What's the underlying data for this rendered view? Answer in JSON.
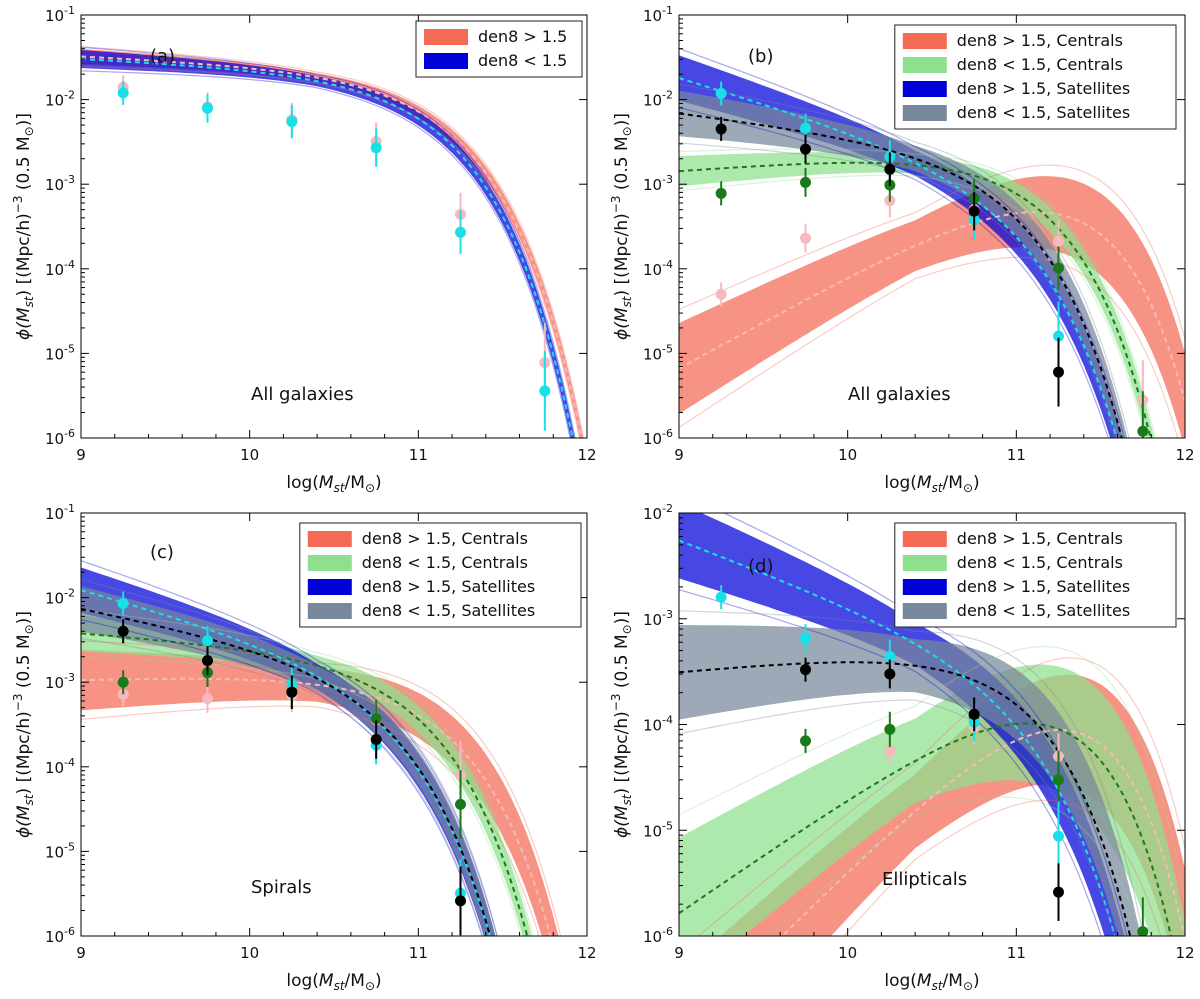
{
  "colors": {
    "den8_gt_centrals": "#f46a55",
    "den8_lt_centrals": "#8ee08e",
    "den8_gt_satellites": "#0000d8",
    "den8_lt_satellites": "#77889a",
    "point_gt_centrals": "#f7b9bd",
    "point_lt_centrals": "#1a7a1a",
    "point_gt_satellites": "#18e0e8",
    "point_lt_satellites": "#000000"
  },
  "chart_data": [
    {
      "id": "a",
      "type": "line",
      "panel_label": "(a)",
      "annotation": "All galaxies",
      "xlabel": "log(M_st/M_⊙)",
      "ylabel": "ϕ(M_st) [(Mpc/h)^-3 (0.5 M_⊙)]",
      "xlim": [
        9,
        12
      ],
      "ylim": [
        1e-06,
        0.1
      ],
      "x_ticks": [
        "9",
        "10",
        "11",
        "12"
      ],
      "y_ticks": [
        "10-6",
        "10-5",
        "10-4",
        "10-3",
        "10-2",
        "10-1"
      ],
      "legend": [
        "den8 > 1.5",
        "den8 < 1.5"
      ],
      "series": [
        {
          "name": "den8 > 1.5",
          "color_key": "den8_gt_centrals",
          "point_color_key": "point_gt_centrals",
          "phi_star": 0.009,
          "alpha": -1.1,
          "log_mstar": 10.98,
          "spread": 0.05,
          "points": [
            [
              9.25,
              0.014
            ],
            [
              9.75,
              0.0082
            ],
            [
              10.25,
              0.0058
            ],
            [
              10.75,
              0.0032
            ],
            [
              11.25,
              0.00044
            ],
            [
              11.75,
              7.8e-06
            ]
          ]
        },
        {
          "name": "den8 < 1.5",
          "color_key": "den8_gt_satellites",
          "point_color_key": "point_gt_satellites",
          "phi_star": 0.0085,
          "alpha": -1.1,
          "log_mstar": 10.93,
          "spread": 0.06,
          "points": [
            [
              9.25,
              0.012
            ],
            [
              9.75,
              0.0079
            ],
            [
              10.25,
              0.0055
            ],
            [
              10.75,
              0.0027
            ],
            [
              11.25,
              0.00027
            ],
            [
              11.75,
              3.6e-06
            ]
          ]
        }
      ]
    },
    {
      "id": "b",
      "type": "line",
      "panel_label": "(b)",
      "annotation": "All galaxies",
      "xlabel": "log(M_st/M_⊙)",
      "ylabel": "ϕ(M_st) [(Mpc/h)^-3 (0.5 M_⊙)]",
      "xlim": [
        9,
        12
      ],
      "ylim": [
        1e-06,
        0.1
      ],
      "x_ticks": [
        "9",
        "10",
        "11",
        "12"
      ],
      "y_ticks": [
        "10-6",
        "10-5",
        "10-4",
        "10-3",
        "10-2",
        "10-1"
      ],
      "legend": [
        "den8 > 1.5, Centrals",
        "den8 < 1.5, Centrals",
        "den8 > 1.5, Satellites",
        "den8 < 1.5, Satellites"
      ],
      "series": [
        {
          "name": "den8 > 1.5, Centrals",
          "color_key": "den8_gt_centrals",
          "point_color_key": "point_gt_centrals",
          "phi_star": 0.00055,
          "alpha": 0.1,
          "log_mstar": 11.07,
          "spread": 0.3,
          "points": [
            [
              9.25,
              5e-05
            ],
            [
              9.75,
              0.00023
            ],
            [
              10.25,
              0.00064
            ],
            [
              10.75,
              0.0005
            ],
            [
              11.25,
              0.00021
            ],
            [
              11.75,
              2.8e-06
            ]
          ]
        },
        {
          "name": "den8 < 1.5, Centrals",
          "color_key": "den8_lt_centrals",
          "point_color_key": "point_lt_centrals",
          "phi_star": 0.0012,
          "alpha": -0.85,
          "log_mstar": 10.88,
          "spread": 0.1,
          "points": [
            [
              9.25,
              0.00078
            ],
            [
              9.75,
              0.00105
            ],
            [
              10.25,
              0.00098
            ],
            [
              10.75,
              0.00068
            ],
            [
              11.25,
              0.000102
            ],
            [
              11.75,
              1.2e-06
            ]
          ]
        },
        {
          "name": "den8 > 1.5, Satellites",
          "color_key": "den8_gt_satellites",
          "point_color_key": "point_gt_satellites",
          "phi_star": 0.00066,
          "alpha": -1.6,
          "log_mstar": 10.8,
          "spread": 0.15,
          "points": [
            [
              9.25,
              0.0118
            ],
            [
              9.75,
              0.0046
            ],
            [
              10.25,
              0.0021
            ],
            [
              10.75,
              0.00038
            ],
            [
              11.25,
              1.6e-05
            ]
          ]
        },
        {
          "name": "den8 < 1.5, Satellites",
          "color_key": "den8_lt_satellites",
          "point_color_key": "point_lt_satellites",
          "phi_star": 0.0011,
          "alpha": -1.25,
          "log_mstar": 10.76,
          "spread": 0.15,
          "points": [
            [
              9.25,
              0.0045
            ],
            [
              9.75,
              0.0026
            ],
            [
              10.25,
              0.0015
            ],
            [
              10.75,
              0.00048
            ],
            [
              11.25,
              6e-06
            ]
          ]
        }
      ]
    },
    {
      "id": "c",
      "type": "line",
      "panel_label": "(c)",
      "annotation": "Spirals",
      "xlabel": "log(M_st/M_⊙)",
      "ylabel": "ϕ(M_st) [(Mpc/h)^-3 (0.5 M_⊙)]",
      "xlim": [
        9,
        12
      ],
      "ylim": [
        1e-06,
        0.1
      ],
      "x_ticks": [
        "9",
        "10",
        "11",
        "12"
      ],
      "y_ticks": [
        "10-6",
        "10-5",
        "10-4",
        "10-3",
        "10-2",
        "10-1"
      ],
      "legend": [
        "den8 > 1.5, Centrals",
        "den8 < 1.5, Centrals",
        "den8 > 1.5, Satellites",
        "den8 < 1.5, Satellites"
      ],
      "series": [
        {
          "name": "den8 > 1.5, Centrals",
          "color_key": "den8_gt_centrals",
          "point_color_key": "point_gt_centrals",
          "phi_star": 0.00058,
          "alpha": -0.95,
          "log_mstar": 10.92,
          "spread": 0.2,
          "points": [
            [
              9.25,
              0.00072
            ],
            [
              9.75,
              0.00064
            ],
            [
              10.25,
              0.0007
            ],
            [
              10.75,
              0.00036
            ],
            [
              11.25,
              8e-05
            ]
          ]
        },
        {
          "name": "den8 < 1.5, Centrals",
          "color_key": "den8_lt_centrals",
          "point_color_key": "point_lt_centrals",
          "phi_star": 0.0009,
          "alpha": -1.15,
          "log_mstar": 10.78,
          "spread": 0.12,
          "points": [
            [
              9.25,
              0.001
            ],
            [
              9.75,
              0.0013
            ],
            [
              10.25,
              0.00078
            ],
            [
              10.75,
              0.00037
            ],
            [
              11.25,
              3.6e-05
            ]
          ]
        },
        {
          "name": "den8 > 1.5, Satellites",
          "color_key": "den8_gt_satellites",
          "point_color_key": "point_gt_satellites",
          "phi_star": 0.0007,
          "alpha": -1.55,
          "log_mstar": 10.62,
          "spread": 0.15,
          "points": [
            [
              9.25,
              0.0085
            ],
            [
              9.75,
              0.0031
            ],
            [
              10.25,
              0.00095
            ],
            [
              10.75,
              0.00018
            ],
            [
              11.25,
              3.2e-06
            ]
          ]
        },
        {
          "name": "den8 < 1.5, Satellites",
          "color_key": "den8_lt_satellites",
          "point_color_key": "point_lt_satellites",
          "phi_star": 0.00075,
          "alpha": -1.4,
          "log_mstar": 10.6,
          "spread": 0.15,
          "points": [
            [
              9.25,
              0.004
            ],
            [
              9.75,
              0.0018
            ],
            [
              10.25,
              0.00076
            ],
            [
              10.75,
              0.00021
            ],
            [
              11.25,
              2.6e-06
            ]
          ]
        }
      ]
    },
    {
      "id": "d",
      "type": "line",
      "panel_label": "(d)",
      "annotation": "Ellipticals",
      "xlabel": "log(M_st/M_⊙)",
      "ylabel": "ϕ(M_st) [(Mpc/h)^-3 (0.5 M_⊙)]",
      "xlim": [
        9,
        12
      ],
      "ylim": [
        1e-06,
        0.01
      ],
      "x_ticks": [
        "9",
        "10",
        "11",
        "12"
      ],
      "y_ticks": [
        "10-6",
        "10-5",
        "10-4",
        "10-3",
        "10-2"
      ],
      "legend": [
        "den8 > 1.5, Centrals",
        "den8 < 1.5, Centrals",
        "den8 > 1.5, Satellites",
        "den8 < 1.5, Satellites"
      ],
      "series": [
        {
          "name": "den8 > 1.5, Centrals",
          "color_key": "den8_gt_centrals",
          "point_color_key": "point_gt_centrals",
          "phi_star": 9e-05,
          "alpha": 0.6,
          "log_mstar": 11.05,
          "spread": 0.35,
          "points": [
            [
              10.25,
              5.6e-05
            ],
            [
              10.75,
              9.5e-05
            ],
            [
              11.25,
              5e-05
            ]
          ]
        },
        {
          "name": "den8 < 1.5, Centrals",
          "color_key": "den8_lt_centrals",
          "point_color_key": "point_lt_centrals",
          "phi_star": 0.00012,
          "alpha": 0.1,
          "log_mstar": 11.02,
          "spread": 0.4,
          "points": [
            [
              9.75,
              7e-05
            ],
            [
              10.25,
              9e-05
            ],
            [
              10.75,
              0.00012
            ],
            [
              11.25,
              3e-05
            ],
            [
              11.75,
              1.1e-06
            ]
          ]
        },
        {
          "name": "den8 > 1.5, Satellites",
          "color_key": "den8_gt_satellites",
          "point_color_key": "point_gt_satellites",
          "phi_star": 0.00018,
          "alpha": -1.6,
          "log_mstar": 10.88,
          "spread": 0.2,
          "points": [
            [
              9.25,
              0.0016
            ],
            [
              9.75,
              0.00065
            ],
            [
              10.25,
              0.00044
            ],
            [
              10.75,
              0.000105
            ],
            [
              11.25,
              8.8e-06
            ]
          ]
        },
        {
          "name": "den8 < 1.5, Satellites",
          "color_key": "den8_lt_satellites",
          "point_color_key": "point_lt_satellites",
          "phi_star": 0.00026,
          "alpha": -0.85,
          "log_mstar": 10.85,
          "spread": 0.25,
          "points": [
            [
              9.75,
              0.00033
            ],
            [
              10.25,
              0.0003
            ],
            [
              10.75,
              0.000125
            ],
            [
              11.25,
              2.6e-06
            ]
          ]
        }
      ]
    }
  ]
}
